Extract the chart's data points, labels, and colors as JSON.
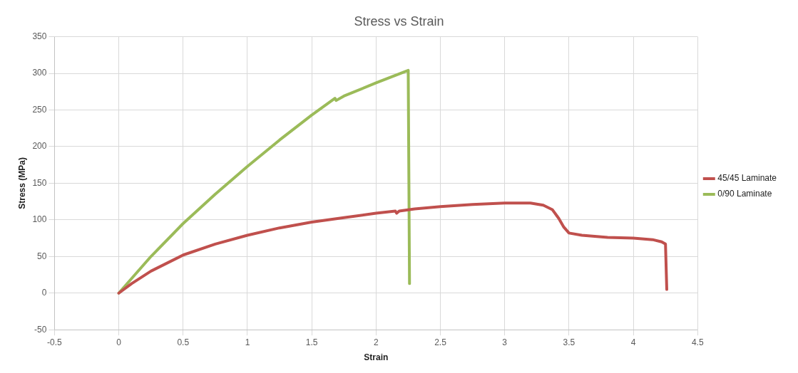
{
  "chart_data": {
    "type": "line",
    "title": "Stress vs Strain",
    "xlabel": "Strain",
    "ylabel": "Stress (MPa)",
    "xlim": [
      -0.5,
      4.5
    ],
    "xticks": [
      -0.5,
      0,
      0.5,
      1,
      1.5,
      2,
      2.5,
      3,
      3.5,
      4,
      4.5
    ],
    "ylim": [
      -50,
      350
    ],
    "yticks": [
      -50,
      0,
      50,
      100,
      150,
      200,
      250,
      300,
      350
    ],
    "grid": true,
    "legend": "right",
    "marker": "none",
    "line_style": "solid",
    "series": [
      {
        "name": "45/45 Laminate",
        "color": "#c0504d",
        "x": [
          0,
          0.1,
          0.25,
          0.5,
          0.75,
          1,
          1.25,
          1.5,
          1.75,
          2,
          2.15,
          2.16,
          2.18,
          2.3,
          2.5,
          2.75,
          3,
          3.2,
          3.3,
          3.37,
          3.42,
          3.46,
          3.5,
          3.6,
          3.8,
          4,
          4.15,
          4.22,
          4.25,
          4.26
        ],
        "values": [
          0,
          13,
          30,
          52,
          67,
          79,
          89,
          97,
          103,
          109,
          112,
          109,
          112,
          115,
          118,
          121,
          123,
          123,
          120,
          114,
          102,
          90,
          82,
          79,
          76,
          75,
          73,
          70,
          67,
          5
        ]
      },
      {
        "name": "0/90 Laminate",
        "color": "#9bbb59",
        "x": [
          0,
          0.25,
          0.5,
          0.75,
          1,
          1.25,
          1.5,
          1.68,
          1.69,
          1.75,
          2,
          2.25,
          2.26
        ],
        "values": [
          0,
          50,
          95,
          135,
          173,
          209,
          243,
          266,
          263,
          269,
          287,
          304,
          13
        ]
      }
    ]
  }
}
